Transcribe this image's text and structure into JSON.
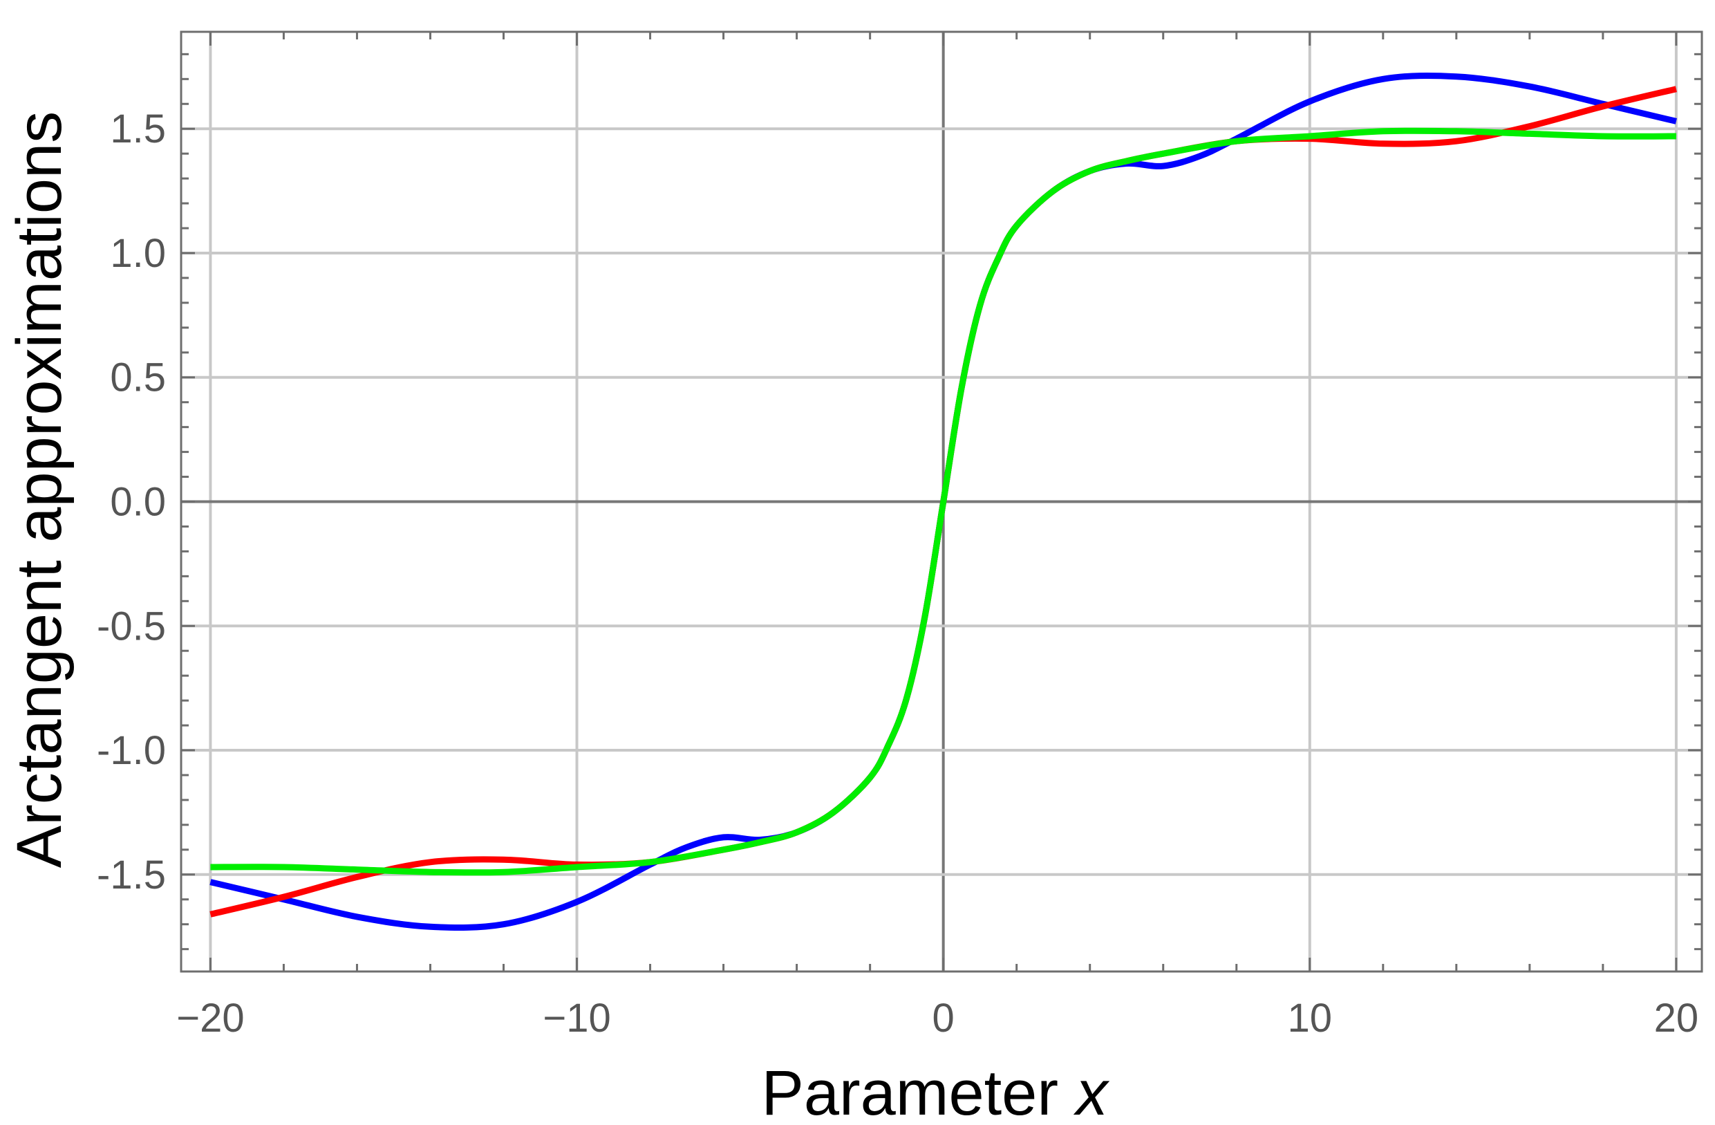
{
  "chart_data": {
    "type": "line",
    "title": "",
    "xlabel": "Parameter",
    "xlabel_var": "x",
    "ylabel": "Arctangent approximations",
    "xlim": [
      -20.8,
      20.7
    ],
    "ylim": [
      -1.89,
      1.89
    ],
    "xticks": [
      -20,
      -10,
      0,
      10,
      20
    ],
    "xtick_labels": [
      "−20",
      "−10",
      "0",
      "10",
      "20"
    ],
    "yticks": [
      -1.5,
      -1.0,
      -0.5,
      0.0,
      0.5,
      1.0,
      1.5
    ],
    "ytick_labels": [
      "-1.5",
      "-1.0",
      "-0.5",
      "0.0",
      "0.5",
      "1.0",
      "1.5"
    ],
    "grid": true,
    "legend": "none",
    "series": [
      {
        "color": "#0000ff",
        "x": [
          -20,
          -18,
          -16,
          -14,
          -12,
          -10,
          -8,
          -7,
          -6,
          -5,
          -4,
          -3,
          -2,
          -1.5,
          -1,
          -0.5,
          0,
          0.5,
          1,
          1.5,
          2,
          3,
          4,
          5,
          6,
          7,
          8,
          10,
          12,
          14,
          16,
          18,
          20
        ],
        "y": [
          -1.53,
          -1.6,
          -1.67,
          -1.71,
          -1.7,
          -1.61,
          -1.46,
          -1.39,
          -1.35,
          -1.36,
          -1.33,
          -1.25,
          -1.11,
          -0.98,
          -0.79,
          -0.46,
          0.0,
          0.46,
          0.79,
          0.98,
          1.11,
          1.25,
          1.33,
          1.36,
          1.35,
          1.39,
          1.46,
          1.61,
          1.7,
          1.71,
          1.67,
          1.6,
          1.53
        ]
      },
      {
        "color": "#ff0000",
        "x": [
          -20,
          -18,
          -16,
          -14,
          -12,
          -10,
          -8,
          -6,
          -5,
          -4,
          -3,
          -2,
          -1.5,
          -1,
          -0.5,
          0,
          0.5,
          1,
          1.5,
          2,
          3,
          4,
          5,
          6,
          8,
          10,
          12,
          14,
          16,
          18,
          20
        ],
        "y": [
          -1.66,
          -1.59,
          -1.51,
          -1.45,
          -1.44,
          -1.46,
          -1.45,
          -1.4,
          -1.37,
          -1.33,
          -1.25,
          -1.11,
          -0.98,
          -0.79,
          -0.46,
          0.0,
          0.46,
          0.79,
          0.98,
          1.11,
          1.25,
          1.33,
          1.37,
          1.4,
          1.45,
          1.46,
          1.44,
          1.45,
          1.51,
          1.59,
          1.66
        ]
      },
      {
        "color": "#00ee00",
        "x": [
          -20,
          -18,
          -16,
          -14,
          -12,
          -10,
          -8,
          -6,
          -5,
          -4,
          -3,
          -2,
          -1.5,
          -1,
          -0.5,
          0,
          0.5,
          1,
          1.5,
          2,
          3,
          4,
          5,
          6,
          8,
          10,
          12,
          14,
          16,
          18,
          20
        ],
        "y": [
          -1.47,
          -1.47,
          -1.48,
          -1.49,
          -1.49,
          -1.47,
          -1.45,
          -1.4,
          -1.37,
          -1.33,
          -1.25,
          -1.11,
          -0.98,
          -0.79,
          -0.46,
          0.0,
          0.46,
          0.79,
          0.98,
          1.11,
          1.25,
          1.33,
          1.37,
          1.4,
          1.45,
          1.47,
          1.49,
          1.49,
          1.48,
          1.47,
          1.47
        ]
      }
    ]
  }
}
